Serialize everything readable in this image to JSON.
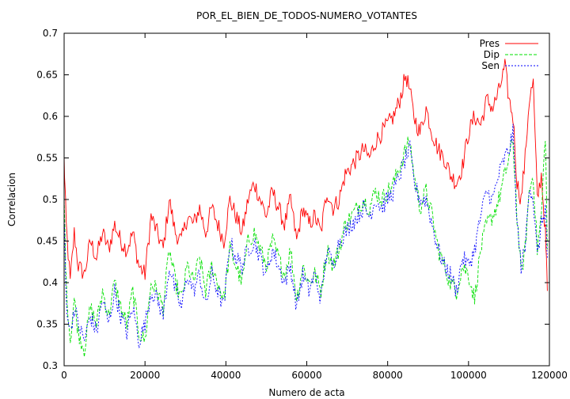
{
  "chart_data": {
    "type": "line",
    "title": "POR_EL_BIEN_DE_TODOS-NUMERO_VOTANTES",
    "xlabel": "Numero de acta",
    "ylabel": "Correlacion",
    "xlim": [
      0,
      120000
    ],
    "ylim": [
      0.3,
      0.7
    ],
    "xticks": [
      0,
      20000,
      40000,
      60000,
      80000,
      100000,
      120000
    ],
    "yticks": [
      0.3,
      0.35,
      0.4,
      0.45,
      0.5,
      0.55,
      0.6,
      0.65,
      0.7
    ],
    "xtick_labels": [
      "0",
      "20000",
      "40000",
      "60000",
      "80000",
      "100000",
      "120000"
    ],
    "ytick_labels": [
      "0.3",
      "0.35",
      "0.4",
      "0.45",
      "0.5",
      "0.55",
      "0.6",
      "0.65",
      "0.7"
    ],
    "grid": false,
    "legend_position": "top-right",
    "series": [
      {
        "name": "Pres",
        "color": "#ff0000",
        "dash": "solid",
        "x": [
          0,
          500,
          1500,
          2500,
          3500,
          5000,
          6500,
          8000,
          9500,
          11000,
          12500,
          14000,
          15500,
          17000,
          18500,
          20000,
          21500,
          23000,
          24500,
          26000,
          27500,
          29000,
          30500,
          32000,
          33500,
          35000,
          36500,
          38000,
          39500,
          41000,
          42500,
          44000,
          45500,
          47000,
          48500,
          50000,
          51500,
          53000,
          54500,
          56000,
          57500,
          59000,
          60500,
          62000,
          63500,
          65000,
          66500,
          68000,
          69500,
          71000,
          72500,
          74000,
          75500,
          77000,
          78500,
          80000,
          81500,
          83000,
          84500,
          85500,
          86500,
          88000,
          89500,
          91000,
          92500,
          94000,
          95500,
          97000,
          98500,
          100000,
          101500,
          103000,
          104500,
          106000,
          107500,
          109000,
          110000,
          111000,
          112000,
          113000,
          114000,
          115000,
          116000,
          117000,
          118000,
          119000,
          119500
        ],
        "y": [
          0.55,
          0.47,
          0.4,
          0.46,
          0.42,
          0.41,
          0.45,
          0.43,
          0.46,
          0.44,
          0.47,
          0.45,
          0.44,
          0.46,
          0.42,
          0.41,
          0.48,
          0.46,
          0.44,
          0.5,
          0.46,
          0.45,
          0.48,
          0.47,
          0.49,
          0.46,
          0.49,
          0.47,
          0.45,
          0.5,
          0.48,
          0.46,
          0.5,
          0.52,
          0.5,
          0.48,
          0.51,
          0.49,
          0.47,
          0.5,
          0.45,
          0.49,
          0.47,
          0.48,
          0.46,
          0.51,
          0.49,
          0.5,
          0.53,
          0.54,
          0.55,
          0.56,
          0.55,
          0.57,
          0.58,
          0.59,
          0.6,
          0.62,
          0.65,
          0.63,
          0.6,
          0.58,
          0.61,
          0.58,
          0.56,
          0.55,
          0.53,
          0.52,
          0.54,
          0.58,
          0.6,
          0.59,
          0.62,
          0.61,
          0.63,
          0.66,
          0.62,
          0.6,
          0.52,
          0.5,
          0.55,
          0.62,
          0.64,
          0.5,
          0.53,
          0.46,
          0.39
        ]
      },
      {
        "name": "Dip",
        "color": "#00e000",
        "dash": "dashed",
        "x": [
          0,
          500,
          1500,
          2500,
          3500,
          5000,
          6500,
          8000,
          9500,
          11000,
          12500,
          14000,
          15500,
          17000,
          18500,
          20000,
          21500,
          23000,
          24500,
          26000,
          27500,
          29000,
          30500,
          32000,
          33500,
          35000,
          36500,
          38000,
          39500,
          41000,
          42500,
          44000,
          45500,
          47000,
          48500,
          50000,
          51500,
          53000,
          54500,
          56000,
          57500,
          59000,
          60500,
          62000,
          63500,
          65000,
          66500,
          68000,
          69500,
          71000,
          72500,
          74000,
          75500,
          77000,
          78500,
          80000,
          81500,
          83000,
          84500,
          85500,
          86500,
          88000,
          89500,
          91000,
          92500,
          94000,
          95500,
          97000,
          98500,
          100000,
          101500,
          103000,
          104500,
          106000,
          107500,
          109000,
          110000,
          111000,
          112000,
          113000,
          114000,
          115000,
          116000,
          117000,
          118000,
          119000,
          119500
        ],
        "y": [
          0.5,
          0.4,
          0.33,
          0.38,
          0.34,
          0.32,
          0.37,
          0.35,
          0.39,
          0.36,
          0.4,
          0.37,
          0.35,
          0.39,
          0.34,
          0.33,
          0.4,
          0.39,
          0.37,
          0.44,
          0.4,
          0.38,
          0.42,
          0.4,
          0.43,
          0.39,
          0.42,
          0.4,
          0.38,
          0.44,
          0.42,
          0.4,
          0.45,
          0.46,
          0.44,
          0.42,
          0.45,
          0.43,
          0.41,
          0.44,
          0.38,
          0.42,
          0.4,
          0.41,
          0.39,
          0.44,
          0.42,
          0.44,
          0.47,
          0.48,
          0.49,
          0.5,
          0.49,
          0.51,
          0.5,
          0.51,
          0.52,
          0.54,
          0.56,
          0.57,
          0.53,
          0.49,
          0.51,
          0.48,
          0.44,
          0.42,
          0.4,
          0.39,
          0.42,
          0.41,
          0.38,
          0.44,
          0.47,
          0.48,
          0.5,
          0.53,
          0.55,
          0.57,
          0.48,
          0.41,
          0.44,
          0.51,
          0.53,
          0.44,
          0.48,
          0.58,
          0.44
        ]
      },
      {
        "name": "Sen",
        "color": "#0000ff",
        "dash": "dotted",
        "x": [
          0,
          500,
          1500,
          2500,
          3500,
          5000,
          6500,
          8000,
          9500,
          11000,
          12500,
          14000,
          15500,
          17000,
          18500,
          20000,
          21500,
          23000,
          24500,
          26000,
          27500,
          29000,
          30500,
          32000,
          33500,
          35000,
          36500,
          38000,
          39500,
          41000,
          42500,
          44000,
          45500,
          47000,
          48500,
          50000,
          51500,
          53000,
          54500,
          56000,
          57500,
          59000,
          60500,
          62000,
          63500,
          65000,
          66500,
          68000,
          69500,
          71000,
          72500,
          74000,
          75500,
          77000,
          78500,
          80000,
          81500,
          83000,
          84500,
          85500,
          86500,
          88000,
          89500,
          91000,
          92500,
          94000,
          95500,
          97000,
          98500,
          100000,
          101500,
          103000,
          104500,
          106000,
          107500,
          109000,
          110000,
          111000,
          112000,
          113000,
          114000,
          115000,
          116000,
          117000,
          118000,
          119000,
          119500
        ],
        "y": [
          0.48,
          0.38,
          0.34,
          0.37,
          0.35,
          0.33,
          0.36,
          0.34,
          0.38,
          0.35,
          0.39,
          0.36,
          0.34,
          0.37,
          0.33,
          0.35,
          0.39,
          0.38,
          0.36,
          0.42,
          0.39,
          0.37,
          0.41,
          0.39,
          0.41,
          0.37,
          0.41,
          0.39,
          0.37,
          0.45,
          0.43,
          0.42,
          0.44,
          0.45,
          0.43,
          0.41,
          0.44,
          0.42,
          0.4,
          0.42,
          0.37,
          0.41,
          0.39,
          0.41,
          0.38,
          0.44,
          0.42,
          0.45,
          0.46,
          0.47,
          0.48,
          0.49,
          0.48,
          0.5,
          0.49,
          0.5,
          0.51,
          0.53,
          0.55,
          0.56,
          0.52,
          0.5,
          0.5,
          0.47,
          0.44,
          0.42,
          0.41,
          0.39,
          0.43,
          0.42,
          0.44,
          0.48,
          0.51,
          0.5,
          0.53,
          0.55,
          0.56,
          0.58,
          0.47,
          0.42,
          0.44,
          0.52,
          0.5,
          0.43,
          0.47,
          0.49,
          0.43
        ]
      }
    ]
  }
}
